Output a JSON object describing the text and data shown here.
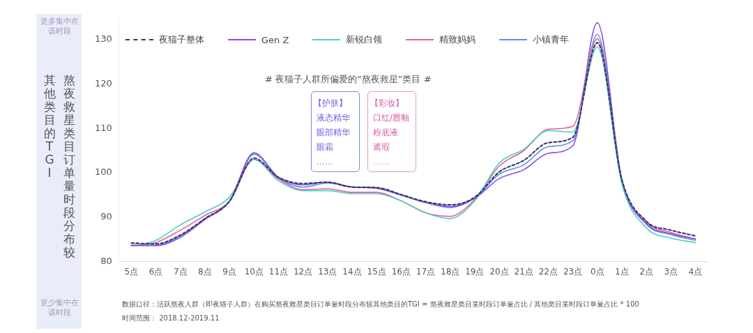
{
  "chart_data": {
    "type": "line",
    "title": "# 夜猫子人群所偏爱的“熬夜救星”类目 #",
    "ylabel": "熬夜救星类目订单量时段分布较其他类目的TGI",
    "categories": [
      "5点",
      "6点",
      "7点",
      "8点",
      "9点",
      "10点",
      "11点",
      "12点",
      "13点",
      "14点",
      "15点",
      "16点",
      "17点",
      "18点",
      "19点",
      "20点",
      "21点",
      "22点",
      "23点",
      "0点",
      "1点",
      "2点",
      "3点",
      "4点"
    ],
    "series": [
      {
        "name": "夜猫子整体",
        "color": "#2d3561",
        "line_style": "dashed",
        "values": [
          84.2,
          84,
          86,
          89.7,
          93.6,
          103.3,
          99,
          97.6,
          97.9,
          96.8,
          96.7,
          95.1,
          93.5,
          92.8,
          94.5,
          100.2,
          102.8,
          106.8,
          108,
          129.3,
          98.5,
          89.1,
          87.1,
          85.8
        ]
      },
      {
        "name": "Gen Z",
        "color": "#8a4be6",
        "line_style": "solid",
        "values": [
          83.7,
          83.6,
          85.5,
          89.5,
          93.6,
          104.5,
          99,
          97.3,
          97.9,
          96.8,
          96.5,
          95,
          93.3,
          92.4,
          94.3,
          98.7,
          100.7,
          104.4,
          106.1,
          133.8,
          98.5,
          88.6,
          86.3,
          85.1
        ]
      },
      {
        "name": "新锐白领",
        "color": "#4dcfc0",
        "line_style": "solid",
        "values": [
          83.5,
          84.8,
          88.3,
          91.2,
          94.5,
          103,
          98.2,
          96,
          96,
          95.3,
          95.3,
          93.7,
          91,
          89.7,
          93.7,
          102.2,
          105.3,
          109.5,
          109.2,
          128.3,
          97.5,
          87.6,
          85.3,
          84.3
        ]
      },
      {
        "name": "精致妈妈",
        "color": "#e0609f",
        "line_style": "solid",
        "values": [
          83.7,
          84.3,
          87.1,
          90.4,
          93.6,
          103,
          98.6,
          96.2,
          96.4,
          95.6,
          95.6,
          93.7,
          91,
          90.2,
          94,
          101.5,
          105,
          109.8,
          110.5,
          130.2,
          98,
          88.9,
          86.6,
          85.1
        ]
      },
      {
        "name": "小镇青年",
        "color": "#5b8fe8",
        "line_style": "solid",
        "values": [
          83.6,
          83.7,
          85.8,
          89.6,
          93.6,
          104.2,
          98.8,
          96.8,
          97.7,
          96.8,
          96.6,
          95,
          93.3,
          92.2,
          94.3,
          99.7,
          101.8,
          105.9,
          107.2,
          131.2,
          98.3,
          88.4,
          86.1,
          84.8
        ]
      }
    ],
    "ylim": [
      80,
      135
    ],
    "yticks": [
      80,
      90,
      100,
      110,
      120,
      130
    ],
    "grid": false,
    "legend": "top left",
    "marker": "none",
    "annotations": [
      "更多集中在该时段",
      "更少集中在该时段",
      "【护肤】",
      "液态精华",
      "眼部精华",
      "眼霜",
      "……",
      "【彩妆】",
      "口红/唇釉",
      "粉底液",
      "遮瑕",
      "……",
      "数据口径：活跃熬夜人群（即夜猫子人群）在购买熬夜救星类目订单量时段分布较其他类目的TGI = 熬夜救星类目某时段订单量占比 / 其他类目某时段订单量占比 * 100",
      "时间范围：  2018.12-2019.11"
    ]
  }
}
